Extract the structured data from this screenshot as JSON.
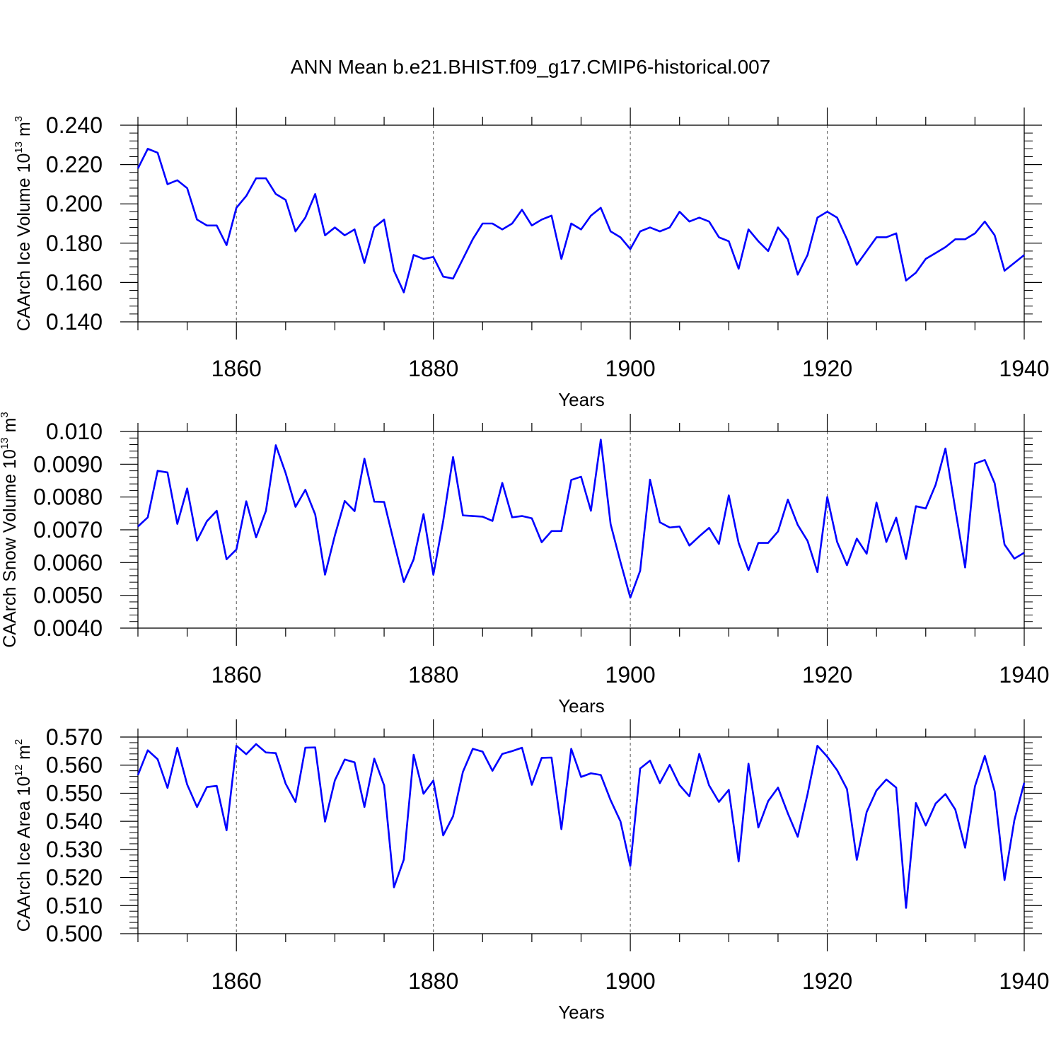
{
  "title": "ANN Mean b.e21.BHIST.f09_g17.CMIP6-historical.007",
  "colors": {
    "line": "#0000ff",
    "axis": "#000000",
    "grid": "#555555"
  },
  "chart_data": [
    {
      "type": "line",
      "title": "ANN Mean b.e21.BHIST.f09_g17.CMIP6-historical.007",
      "xlabel": "Years",
      "ylabel": {
        "text": "CAArch Ice Volume 10",
        "exp": "13",
        "unit": " m",
        "unit_exp": "3"
      },
      "xlim": [
        1850,
        1940
      ],
      "ylim": [
        0.14,
        0.24
      ],
      "xticks": [
        1860,
        1880,
        1900,
        1920,
        1940
      ],
      "yticks": [
        0.14,
        0.16,
        0.18,
        0.2,
        0.22,
        0.24
      ],
      "ytick_labels": [
        "0.140",
        "0.160",
        "0.180",
        "0.200",
        "0.220",
        "0.240"
      ],
      "grid": "vertical dashed at major x ticks",
      "x_start": 1850,
      "series": [
        {
          "name": "CAArch Ice Volume",
          "values": [
            0.218,
            0.228,
            0.226,
            0.21,
            0.212,
            0.208,
            0.192,
            0.189,
            0.189,
            0.179,
            0.198,
            0.204,
            0.213,
            0.213,
            0.205,
            0.202,
            0.186,
            0.193,
            0.205,
            0.184,
            0.188,
            0.184,
            0.187,
            0.17,
            0.188,
            0.192,
            0.166,
            0.155,
            0.174,
            0.172,
            0.173,
            0.163,
            0.162,
            0.172,
            0.182,
            0.19,
            0.19,
            0.187,
            0.19,
            0.197,
            0.189,
            0.192,
            0.194,
            0.172,
            0.19,
            0.187,
            0.194,
            0.198,
            0.186,
            0.183,
            0.177,
            0.186,
            0.188,
            0.186,
            0.188,
            0.196,
            0.191,
            0.193,
            0.191,
            0.183,
            0.181,
            0.167,
            0.187,
            0.181,
            0.176,
            0.188,
            0.182,
            0.164,
            0.174,
            0.193,
            0.196,
            0.193,
            0.182,
            0.169,
            0.176,
            0.183,
            0.183,
            0.185,
            0.161,
            0.165,
            0.172,
            0.175,
            0.178,
            0.182,
            0.182,
            0.185,
            0.191,
            0.184,
            0.166,
            0.17,
            0.174
          ]
        }
      ]
    },
    {
      "type": "line",
      "title": "",
      "xlabel": "Years",
      "ylabel": {
        "text": "CAArch Snow Volume 10",
        "exp": "13",
        "unit": " m",
        "unit_exp": "3"
      },
      "xlim": [
        1850,
        1940
      ],
      "ylim": [
        0.004,
        0.01
      ],
      "xticks": [
        1860,
        1880,
        1900,
        1920,
        1940
      ],
      "yticks": [
        0.004,
        0.005,
        0.006,
        0.007,
        0.008,
        0.009,
        0.01
      ],
      "ytick_labels": [
        "0.0040",
        "0.0050",
        "0.0060",
        "0.0070",
        "0.0080",
        "0.0090",
        "0.010"
      ],
      "grid": "vertical dashed at major x ticks",
      "x_start": 1850,
      "series": [
        {
          "name": "CAArch Snow Volume",
          "values": [
            0.0071,
            0.00738,
            0.0088,
            0.00875,
            0.00718,
            0.00826,
            0.00667,
            0.00726,
            0.00758,
            0.0061,
            0.0064,
            0.00787,
            0.00677,
            0.00758,
            0.00958,
            0.00873,
            0.0077,
            0.00822,
            0.00747,
            0.00563,
            0.00683,
            0.00788,
            0.00757,
            0.00917,
            0.00786,
            0.00785,
            0.00662,
            0.00541,
            0.0061,
            0.00748,
            0.00563,
            0.00727,
            0.00922,
            0.00744,
            0.00742,
            0.0074,
            0.00727,
            0.00843,
            0.00738,
            0.00742,
            0.00735,
            0.00662,
            0.00696,
            0.00696,
            0.00852,
            0.00862,
            0.00758,
            0.00975,
            0.00717,
            0.00602,
            0.00493,
            0.00575,
            0.00853,
            0.00723,
            0.00707,
            0.0071,
            0.00652,
            0.0068,
            0.00706,
            0.00657,
            0.00805,
            0.0066,
            0.00577,
            0.0066,
            0.0066,
            0.00695,
            0.00792,
            0.00715,
            0.00666,
            0.00571,
            0.008,
            0.00663,
            0.00592,
            0.00673,
            0.00627,
            0.00783,
            0.00663,
            0.00737,
            0.00611,
            0.00772,
            0.00765,
            0.00837,
            0.00948,
            0.00763,
            0.00585,
            0.00902,
            0.00913,
            0.00842,
            0.00655,
            0.00612,
            0.0063
          ]
        }
      ]
    },
    {
      "type": "line",
      "title": "",
      "xlabel": "Years",
      "ylabel": {
        "text": "CAArch Ice Area 10",
        "exp": "12",
        "unit": " m",
        "unit_exp": "2"
      },
      "xlim": [
        1850,
        1940
      ],
      "ylim": [
        0.5,
        0.57
      ],
      "xticks": [
        1860,
        1880,
        1900,
        1920,
        1940
      ],
      "yticks": [
        0.5,
        0.51,
        0.52,
        0.53,
        0.54,
        0.55,
        0.56,
        0.57
      ],
      "ytick_labels": [
        "0.500",
        "0.510",
        "0.520",
        "0.530",
        "0.540",
        "0.550",
        "0.560",
        "0.570"
      ],
      "grid": "vertical dashed at major x ticks",
      "x_start": 1850,
      "series": [
        {
          "name": "CAArch Ice Area",
          "values": [
            0.5565,
            0.5653,
            0.5621,
            0.5519,
            0.5662,
            0.5531,
            0.5451,
            0.5522,
            0.5526,
            0.5368,
            0.5669,
            0.5639,
            0.5675,
            0.5645,
            0.5643,
            0.5534,
            0.5469,
            0.5662,
            0.5663,
            0.5399,
            0.5546,
            0.562,
            0.561,
            0.5451,
            0.5623,
            0.5528,
            0.5165,
            0.5264,
            0.5637,
            0.5498,
            0.5545,
            0.535,
            0.5418,
            0.5576,
            0.5658,
            0.5648,
            0.558,
            0.564,
            0.565,
            0.5662,
            0.553,
            0.5626,
            0.5627,
            0.5372,
            0.5658,
            0.5558,
            0.5571,
            0.5565,
            0.5475,
            0.54,
            0.5241,
            0.5588,
            0.5616,
            0.5536,
            0.5601,
            0.5529,
            0.5489,
            0.564,
            0.5528,
            0.5469,
            0.5512,
            0.5257,
            0.5605,
            0.5378,
            0.5472,
            0.552,
            0.5428,
            0.5345,
            0.5497,
            0.5669,
            0.563,
            0.5582,
            0.5515,
            0.5263,
            0.5433,
            0.551,
            0.5549,
            0.552,
            0.5092,
            0.5465,
            0.5385,
            0.5463,
            0.5497,
            0.5442,
            0.5306,
            0.5525,
            0.5633,
            0.5507,
            0.5191,
            0.5404,
            0.5537
          ]
        }
      ]
    }
  ]
}
